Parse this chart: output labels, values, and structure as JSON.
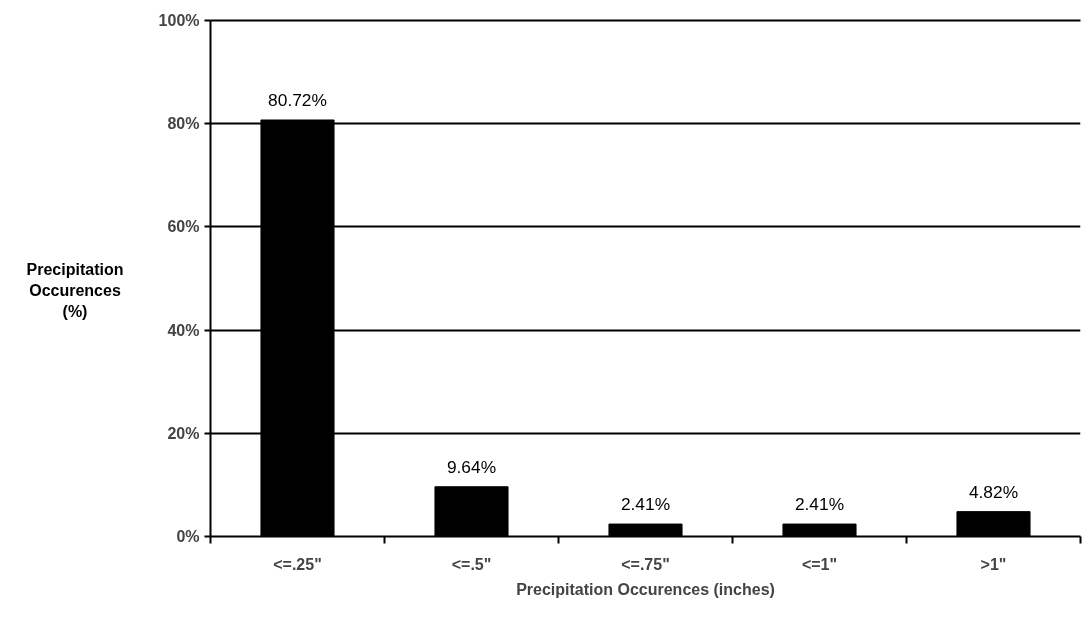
{
  "chart_data": {
    "type": "bar",
    "xlabel": "Precipitation Occurences (inches)",
    "ylabel": "Precipitation\nOccurences\n(%)",
    "categories": [
      "<=.25\"",
      "<=.5\"",
      "<=.75\"",
      "<=1\"",
      ">1\""
    ],
    "values": [
      80.72,
      9.64,
      2.41,
      2.41,
      4.82
    ],
    "value_labels": [
      "80.72%",
      "9.64%",
      "2.41%",
      "2.41%",
      "4.82%"
    ],
    "color": "#000000",
    "ylim": [
      0,
      100
    ],
    "yticks": [
      {
        "value": 0,
        "label": "0%"
      },
      {
        "value": 20,
        "label": "20%"
      },
      {
        "value": 40,
        "label": "40%"
      },
      {
        "value": 60,
        "label": "60%"
      },
      {
        "value": 80,
        "label": "80%"
      },
      {
        "value": 100,
        "label": "100%"
      }
    ],
    "grid": "y"
  }
}
